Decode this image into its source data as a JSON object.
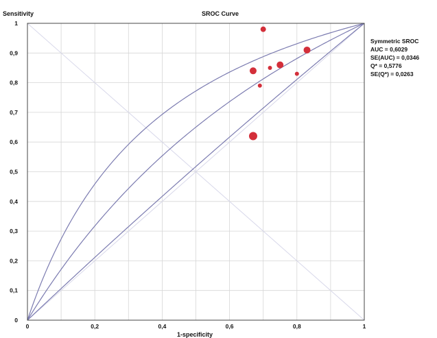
{
  "chart_data": {
    "type": "scatter",
    "title": "SROC Curve",
    "xlabel": "1-specificity",
    "ylabel": "Sensitivity",
    "xlim": [
      0,
      1
    ],
    "ylim": [
      0,
      1
    ],
    "grid": true,
    "x_ticks": [
      "0",
      "0,2",
      "0,4",
      "0,6",
      "0,8",
      "1"
    ],
    "y_ticks": [
      "0",
      "0,1",
      "0,2",
      "0,3",
      "0,4",
      "0,5",
      "0,6",
      "0,7",
      "0,8",
      "0,9",
      "1"
    ],
    "points": [
      {
        "x": 0.7,
        "y": 0.98,
        "size": 4
      },
      {
        "x": 0.83,
        "y": 0.91,
        "size": 5
      },
      {
        "x": 0.75,
        "y": 0.86,
        "size": 5
      },
      {
        "x": 0.72,
        "y": 0.85,
        "size": 3
      },
      {
        "x": 0.67,
        "y": 0.84,
        "size": 5
      },
      {
        "x": 0.8,
        "y": 0.83,
        "size": 3
      },
      {
        "x": 0.69,
        "y": 0.79,
        "size": 3
      },
      {
        "x": 0.67,
        "y": 0.62,
        "size": 6
      }
    ],
    "point_color": "#d32f3a",
    "curve_color": "#7b7bb0",
    "summary": {
      "heading": "Symmetric SROC",
      "lines": [
        "AUC = 0,6029",
        "SE(AUC) = 0,0346",
        "Q* = 0,5776",
        "SE(Q*) = 0,0263"
      ]
    }
  }
}
